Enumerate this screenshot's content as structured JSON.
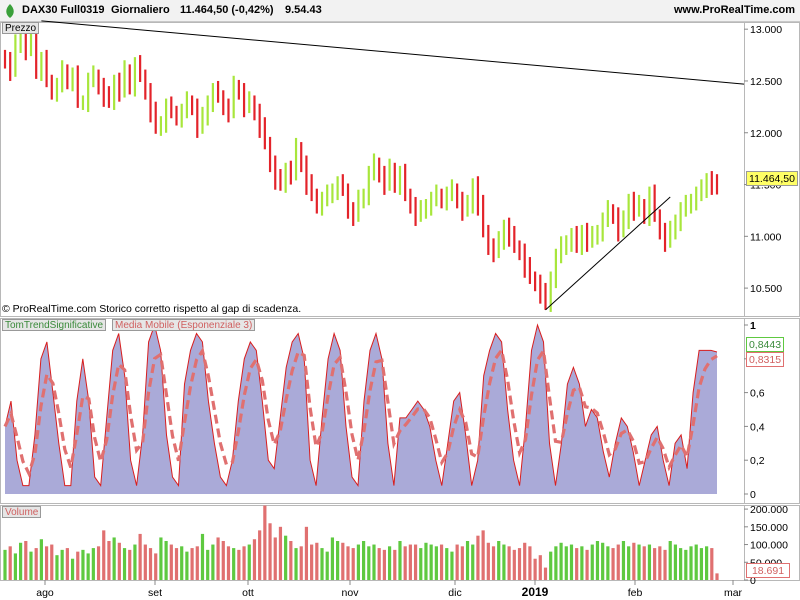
{
  "header": {
    "instrument": "DAX30 Full0319",
    "period": "Giornaliero",
    "last_quote": "11.464,50 (-0,42%)",
    "time": "9.54.43",
    "site": "www.ProRealTime.com",
    "logo_icon": "prorealtime-leaf-icon"
  },
  "price_panel": {
    "label": "Prezzo",
    "copyright": "© ProRealTime.com  Storico corretto rispetto al gap di scadenza.",
    "last_value_label": "11.464,50",
    "y_ticks": [
      "13.000",
      "12.500",
      "12.000",
      "11.500",
      "11.000",
      "10.500"
    ]
  },
  "indicator_panel": {
    "legend_main": "TomTrendSignificative",
    "legend_ma": "Media Mobile (Esponenziale 3)",
    "value_main": "0,8443",
    "value_ma": "0,8315",
    "y_ticks": [
      "1",
      "0,8",
      "0,6",
      "0,4",
      "0,2",
      "0"
    ]
  },
  "volume_panel": {
    "label": "Volume",
    "last_value_label": "18.691",
    "y_ticks": [
      "200.000",
      "150.000",
      "100.000",
      "50.000",
      "0"
    ]
  },
  "x_ticks": [
    "ago",
    "set",
    "ott",
    "nov",
    "dic",
    "2019",
    "feb",
    "mar"
  ],
  "colors": {
    "up": "#a8e63c",
    "down": "#e3232a",
    "indicator_fill": "#aaaad8",
    "indicator_line": "#d81e1e",
    "ma_line": "#e07070",
    "volume_up": "#5ec940",
    "volume_down": "#e07070",
    "trendline": "#000000"
  },
  "chart_data": [
    {
      "type": "ohlc",
      "panel": "price",
      "ylim": [
        10250,
        13050
      ],
      "x_axis": {
        "ticks": [
          "ago",
          "set",
          "ott",
          "nov",
          "dic",
          "2019",
          "feb",
          "mar"
        ]
      },
      "last_value": 11464.5,
      "close_approx": [
        12700,
        12600,
        12850,
        12950,
        12800,
        12950,
        12600,
        12700,
        12500,
        12400,
        12450,
        12600,
        12500,
        12550,
        12300,
        12300,
        12500,
        12550,
        12450,
        12350,
        12300,
        12500,
        12400,
        12600,
        12450,
        12650,
        12550,
        12400,
        12200,
        12050,
        12100,
        12250,
        12200,
        12150,
        12200,
        12300,
        12250,
        12050,
        12150,
        12300,
        12400,
        12350,
        12250,
        12200,
        12450,
        12400,
        12250,
        12300,
        12200,
        12050,
        11900,
        11700,
        11550,
        11500,
        11650,
        11600,
        11850,
        11700,
        11500,
        11400,
        11300,
        11350,
        11400,
        11450,
        11500,
        11450,
        11250,
        11200,
        11350,
        11400,
        11600,
        11700,
        11600,
        11500,
        11650,
        11500,
        11600,
        11400,
        11300,
        11200,
        11250,
        11300,
        11350,
        11400,
        11350,
        11400,
        11450,
        11350,
        11250,
        11300,
        11500,
        11300,
        11050,
        10900,
        10850,
        10950,
        11100,
        11000,
        10900,
        10850,
        10700,
        10600,
        10550,
        10450,
        10350,
        10600,
        10800,
        10900,
        10950,
        11000,
        10900,
        11050,
        10950,
        11000,
        11050,
        11150,
        11250,
        11200,
        11050,
        11150,
        11350,
        11250,
        11300,
        11200,
        11400,
        11200,
        11050,
        10950,
        11050,
        11150,
        11250,
        11300,
        11350,
        11400,
        11450,
        11550,
        11500,
        11464
      ]
    },
    {
      "type": "area",
      "panel": "indicator",
      "ylim": [
        0,
        1
      ],
      "series": [
        {
          "name": "TomTrendSignificative",
          "last_value": 0.8443
        },
        {
          "name": "Media Mobile (Esponenziale 3)",
          "last_value": 0.8315
        }
      ],
      "main_approx": [
        0.4,
        0.55,
        0.2,
        0.05,
        0.05,
        0.35,
        0.8,
        0.9,
        0.6,
        0.3,
        0.05,
        0.05,
        0.55,
        0.8,
        0.55,
        0.1,
        0.05,
        0.45,
        0.85,
        0.95,
        0.7,
        0.2,
        0.05,
        0.35,
        0.9,
        1.0,
        0.85,
        0.35,
        0.1,
        0.05,
        0.65,
        0.85,
        0.95,
        0.9,
        0.55,
        0.3,
        0.1,
        0.05,
        0.2,
        0.55,
        0.8,
        0.9,
        0.85,
        0.55,
        0.2,
        0.15,
        0.45,
        0.75,
        0.9,
        0.95,
        0.8,
        0.2,
        0.05,
        0.45,
        0.8,
        0.95,
        0.85,
        0.4,
        0.1,
        0.05,
        0.55,
        0.85,
        0.95,
        0.8,
        0.3,
        0.05,
        0.45,
        0.45,
        0.5,
        0.55,
        0.5,
        0.4,
        0.2,
        0.05,
        0.3,
        0.55,
        0.6,
        0.35,
        0.05,
        0.2,
        0.7,
        0.85,
        0.95,
        0.9,
        0.5,
        0.2,
        0.05,
        0.4,
        0.85,
        1.0,
        0.9,
        0.3,
        0.05,
        0.3,
        0.65,
        0.75,
        0.65,
        0.4,
        0.5,
        0.45,
        0.25,
        0.1,
        0.3,
        0.45,
        0.4,
        0.25,
        0.05,
        0.2,
        0.35,
        0.4,
        0.2,
        0.05,
        0.3,
        0.35,
        0.15,
        0.6,
        0.85,
        0.85,
        0.85,
        0.84
      ]
    },
    {
      "type": "bar",
      "panel": "volume",
      "ylim": [
        0,
        220000
      ],
      "last_value": 18691,
      "values_approx": [
        85000,
        95000,
        75000,
        105000,
        110000,
        80000,
        90000,
        115000,
        95000,
        100000,
        70000,
        85000,
        90000,
        60000,
        80000,
        85000,
        75000,
        90000,
        95000,
        140000,
        110000,
        120000,
        105000,
        90000,
        85000,
        100000,
        130000,
        100000,
        90000,
        75000,
        120000,
        110000,
        100000,
        90000,
        95000,
        80000,
        90000,
        95000,
        130000,
        85000,
        100000,
        120000,
        110000,
        95000,
        90000,
        85000,
        95000,
        100000,
        115000,
        140000,
        210000,
        160000,
        120000,
        150000,
        125000,
        110000,
        90000,
        95000,
        150000,
        100000,
        105000,
        90000,
        80000,
        120000,
        110000,
        105000,
        95000,
        90000,
        100000,
        110000,
        95000,
        100000,
        90000,
        85000,
        95000,
        85000,
        110000,
        95000,
        100000,
        100000,
        90000,
        105000,
        100000,
        95000,
        100000,
        90000,
        80000,
        100000,
        95000,
        110000,
        100000,
        125000,
        140000,
        105000,
        95000,
        110000,
        100000,
        95000,
        85000,
        90000,
        105000,
        95000,
        60000,
        70000,
        35000,
        80000,
        95000,
        105000,
        95000,
        100000,
        90000,
        95000,
        85000,
        100000,
        110000,
        105000,
        95000,
        90000,
        100000,
        110000,
        95000,
        105000,
        100000,
        95000,
        100000,
        90000,
        95000,
        85000,
        110000,
        100000,
        90000,
        85000,
        95000,
        100000,
        90000,
        95000,
        90000,
        18691
      ]
    }
  ]
}
